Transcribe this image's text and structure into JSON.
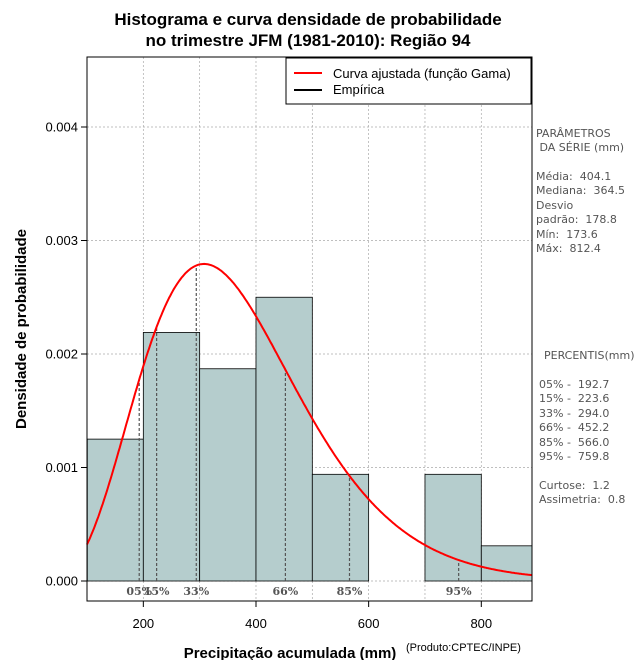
{
  "chart_data": {
    "type": "bar",
    "title_line1": "Histograma e curva densidade de probabilidade",
    "title_line2": "no trimestre JFM (1981-2010): Região 94",
    "xlabel": "Precipitação acumulada (mm)",
    "ylabel": "Densidade de probabilidade",
    "credit": "(Produto:CPTEC/INPE)",
    "xlim": [
      100,
      890
    ],
    "ylim": [
      0,
      0.0046
    ],
    "xticks": [
      200,
      400,
      600,
      800
    ],
    "yticks": [
      0.0,
      0.001,
      0.002,
      0.003,
      0.004
    ],
    "ytick_labels": [
      "0.000",
      "0.001",
      "0.002",
      "0.003",
      "0.004"
    ],
    "bins": [
      {
        "x0": 100,
        "x1": 200,
        "density": 0.00125
      },
      {
        "x0": 200,
        "x1": 300,
        "density": 0.00219
      },
      {
        "x0": 300,
        "x1": 400,
        "density": 0.00187
      },
      {
        "x0": 400,
        "x1": 500,
        "density": 0.0025
      },
      {
        "x0": 500,
        "x1": 600,
        "density": 0.00094
      },
      {
        "x0": 600,
        "x1": 700,
        "density": 0.0
      },
      {
        "x0": 700,
        "x1": 800,
        "density": 0.00094
      },
      {
        "x0": 800,
        "x1": 900,
        "density": 0.00031
      }
    ],
    "gamma_curve": {
      "shape": 5.81,
      "scale": 64.0
    },
    "percentile_markers": [
      {
        "label": "05%",
        "value": 192.7
      },
      {
        "label": "15%",
        "value": 223.6
      },
      {
        "label": "33%",
        "value": 294.0
      },
      {
        "label": "66%",
        "value": 452.2
      },
      {
        "label": "85%",
        "value": 566.0
      },
      {
        "label": "95%",
        "value": 759.8
      }
    ],
    "legend": {
      "position": "top-right",
      "entries": [
        {
          "label": "Curva ajustada (função Gama)",
          "color": "#ff0000"
        },
        {
          "label": "Empírica",
          "color": "#000000"
        }
      ]
    },
    "colors": {
      "bar_fill": "#b5cdcd",
      "curve": "#ff0000",
      "grid": "#aaaaaa",
      "percentile_line": "#555555"
    }
  },
  "side_panel": {
    "params_title_1": "PARÂMETROS",
    "params_title_2": " DA SÉRIE (mm)",
    "stats": [
      "Média:  404.1",
      "Mediana:  364.5",
      "Desvio",
      "padrão:  178.8",
      "Mín:  173.6",
      "Máx:  812.4"
    ],
    "percentis_title": "PERCENTIS(mm)",
    "percentis": [
      "05% -  192.7",
      "15% -  223.6",
      "33% -  294.0",
      "66% -  452.2",
      "85% -  566.0",
      "95% -  759.8"
    ],
    "extra": [
      "Curtose:  1.2",
      "Assimetria:  0.8"
    ]
  }
}
